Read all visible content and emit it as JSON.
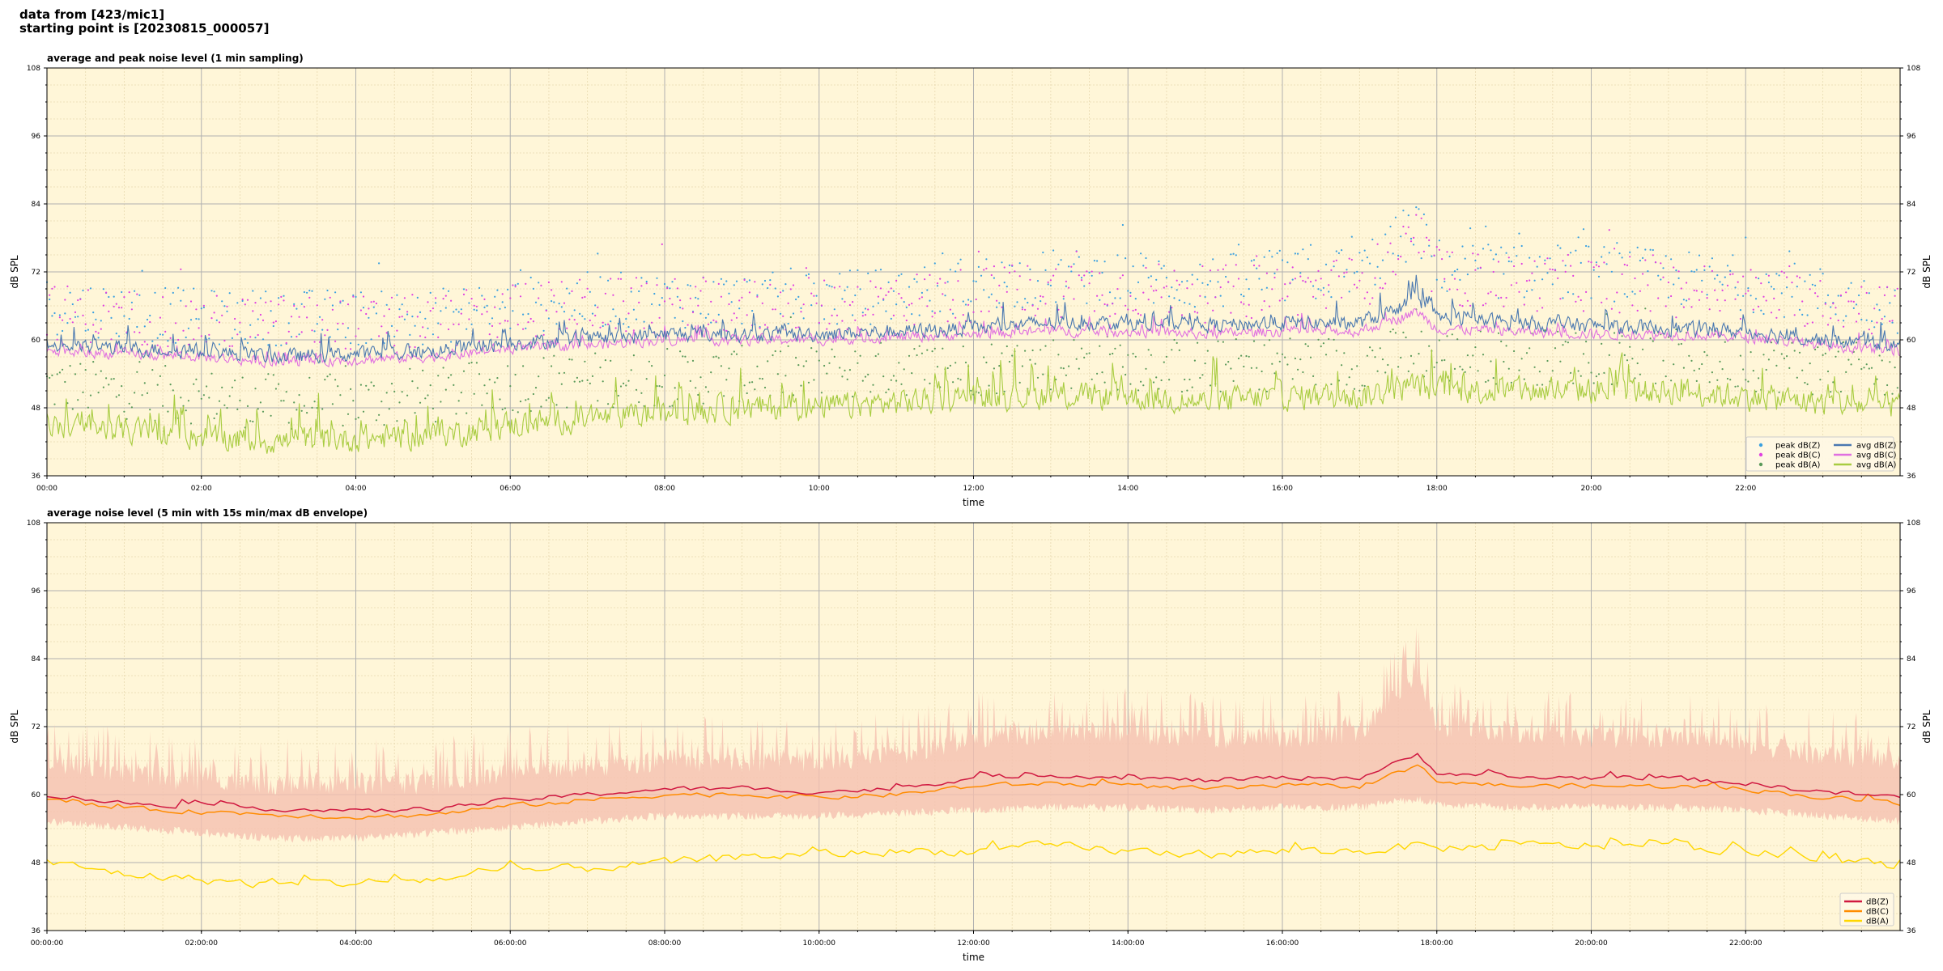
{
  "header": {
    "line1": "data from [423/mic1]",
    "line2": "starting point is [20230815_000057]"
  },
  "colors": {
    "background": "#fff6d8",
    "grid_major": "#b0b0b0",
    "grid_minor": "#e8d9b0",
    "peak_z": "#3aa0e0",
    "peak_c": "#e040e0",
    "peak_a": "#5a9a5a",
    "avg_z": "#4a78b0",
    "avg_c": "#e070e0",
    "avg_a": "#a8cc40",
    "db_z": "#d01840",
    "db_c": "#ff8c00",
    "db_a": "#ffd700",
    "envelope": "#f5c0b0"
  },
  "chart_data": [
    {
      "type": "line",
      "title": "average and peak noise level (1 min sampling)",
      "xlabel": "time",
      "ylabel": "dB SPL",
      "ylim": [
        36,
        108
      ],
      "xlim_hours": [
        0,
        24
      ],
      "yticks": [
        "36",
        "48",
        "60",
        "72",
        "84",
        "96",
        "108"
      ],
      "xticks": [
        "00:00",
        "02:00",
        "04:00",
        "06:00",
        "08:00",
        "10:00",
        "12:00",
        "14:00",
        "16:00",
        "18:00",
        "20:00",
        "22:00"
      ],
      "grid": true,
      "legend_position": "bottom-right",
      "legend": [
        "peak dB(Z)",
        "peak dB(C)",
        "peak dB(A)",
        "avg dB(Z)",
        "avg dB(C)",
        "avg dB(A)"
      ],
      "x_hours": [
        0,
        1,
        2,
        3,
        4,
        5,
        6,
        7,
        8,
        9,
        10,
        11,
        12,
        13,
        14,
        15,
        16,
        17,
        17.75,
        18,
        19,
        20,
        21,
        22,
        23,
        24
      ],
      "series": [
        {
          "name": "avg dB(Z)",
          "values": [
            59,
            58.5,
            58,
            57,
            57.5,
            58,
            59.5,
            60,
            61,
            61,
            61,
            61.5,
            62,
            63,
            63,
            62.5,
            63,
            63,
            67,
            64,
            63,
            62.5,
            62,
            61.5,
            60,
            59
          ]
        },
        {
          "name": "avg dB(C)",
          "values": [
            58,
            57.5,
            57,
            56,
            56.5,
            57,
            58.5,
            59,
            60,
            60,
            60,
            60.5,
            61,
            61.5,
            61.5,
            61,
            61.5,
            61.5,
            65,
            62,
            61.5,
            61,
            61,
            60.5,
            59,
            58
          ]
        },
        {
          "name": "avg dB(A)",
          "values": [
            45,
            44,
            43,
            42,
            42.5,
            43,
            45,
            46,
            47,
            48,
            48,
            49,
            50,
            50,
            50,
            49,
            50,
            50,
            52,
            51,
            51,
            51,
            51,
            50,
            49,
            48
          ]
        },
        {
          "name": "peak dB(Z)",
          "values": [
            66,
            65,
            64,
            64,
            64,
            64,
            66,
            67,
            67,
            67,
            67,
            68,
            70,
            71,
            71,
            70,
            71,
            72,
            80,
            73,
            72,
            72,
            71,
            70,
            68,
            66
          ]
        },
        {
          "name": "peak dB(C)",
          "values": [
            65,
            64,
            63,
            63,
            63,
            63,
            65,
            66,
            66,
            66,
            66,
            67,
            68,
            69,
            69,
            68,
            69,
            70,
            77,
            71,
            70,
            70,
            69,
            68,
            67,
            65
          ]
        },
        {
          "name": "peak dB(A)",
          "values": [
            52,
            51,
            50,
            49,
            49,
            50,
            52,
            53,
            53,
            54,
            54,
            55,
            55,
            56,
            56,
            55,
            56,
            56,
            58,
            57,
            57,
            57,
            57,
            56,
            55,
            54
          ]
        }
      ]
    },
    {
      "type": "line",
      "title": "average noise level (5 min with 15s min/max dB envelope)",
      "xlabel": "time",
      "ylabel": "dB SPL",
      "ylim": [
        36,
        108
      ],
      "xlim_hours": [
        0,
        24
      ],
      "yticks": [
        "36",
        "48",
        "60",
        "72",
        "84",
        "96",
        "108"
      ],
      "xticks": [
        "00:00:00",
        "02:00:00",
        "04:00:00",
        "06:00:00",
        "08:00:00",
        "10:00:00",
        "12:00:00",
        "14:00:00",
        "16:00:00",
        "18:00:00",
        "20:00:00",
        "22:00:00"
      ],
      "grid": true,
      "legend_position": "bottom-right",
      "legend": [
        "dB(Z)",
        "dB(C)",
        "dB(A)"
      ],
      "x_hours": [
        0,
        1,
        2,
        3,
        4,
        5,
        6,
        7,
        8,
        9,
        10,
        11,
        12,
        13,
        14,
        15,
        16,
        17,
        17.75,
        18,
        19,
        20,
        21,
        22,
        23,
        24
      ],
      "series": [
        {
          "name": "dB(Z)",
          "values": [
            60,
            58.5,
            58,
            57.5,
            57,
            57.5,
            59,
            60,
            61,
            61,
            60.5,
            61,
            63,
            63.5,
            63,
            62.5,
            63,
            63,
            67,
            64,
            63,
            63,
            63,
            62,
            60.5,
            59.5
          ]
        },
        {
          "name": "dB(C)",
          "values": [
            59,
            57.5,
            57,
            56.5,
            56,
            56.5,
            58,
            59,
            60,
            60,
            59.5,
            60,
            61.5,
            62,
            61.5,
            61,
            61.5,
            61.5,
            65,
            62.5,
            61.5,
            61.5,
            61.5,
            61,
            59.5,
            58.5
          ]
        },
        {
          "name": "dB(A)",
          "values": [
            48,
            46,
            45,
            44,
            44.5,
            45,
            46.5,
            47,
            48,
            49,
            49.5,
            50,
            50,
            51,
            50,
            49.5,
            50,
            50,
            51,
            50.5,
            51,
            51,
            51,
            50,
            48.5,
            47.5
          ]
        },
        {
          "name": "envelope max",
          "values": [
            68,
            66,
            64,
            64,
            64,
            64,
            66,
            67,
            68,
            68,
            68,
            69,
            72,
            73,
            73,
            72,
            72,
            73,
            84,
            74,
            73,
            72,
            72,
            71,
            69,
            68
          ]
        },
        {
          "name": "envelope min",
          "values": [
            56,
            55,
            54,
            53,
            53,
            54,
            55,
            56,
            57,
            57,
            57,
            57.5,
            58,
            58.5,
            58.5,
            58,
            58.5,
            58.5,
            60,
            59,
            58.5,
            58.5,
            58.5,
            58,
            57,
            56
          ]
        }
      ]
    }
  ]
}
